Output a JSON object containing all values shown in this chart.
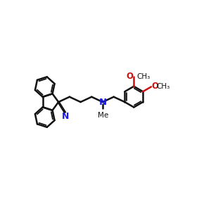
{
  "bg": "#ffffff",
  "bc": "#111111",
  "nc": "#1a1aee",
  "oc": "#cc1111",
  "lw": 1.8,
  "lw_i": 1.3,
  "figsize": [
    3.0,
    3.0
  ],
  "dpi": 100,
  "xlim": [
    -1,
    11
  ],
  "ylim": [
    1,
    9
  ]
}
